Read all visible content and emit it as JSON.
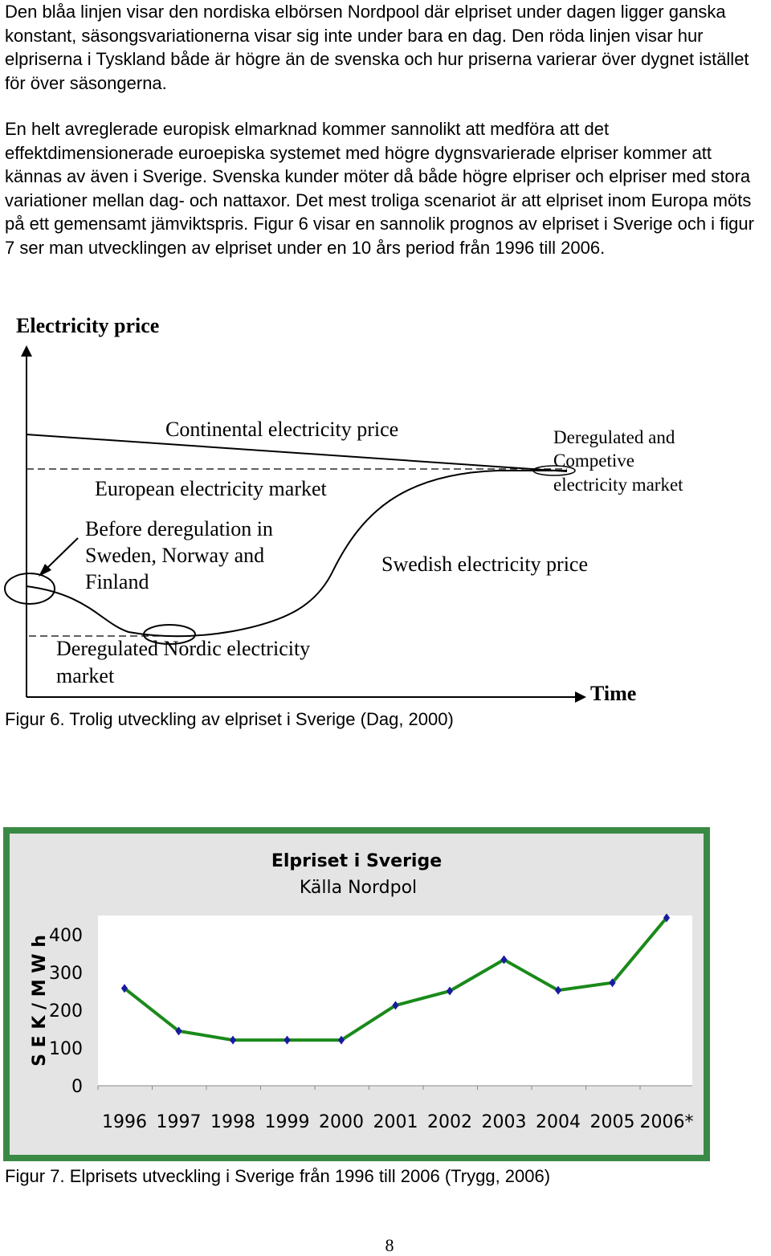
{
  "paragraphs": [
    "Den blåa linjen visar den nordiska elbörsen Nordpool där elpriset under dagen ligger ganska konstant, säsongsvariationerna visar sig inte under bara en dag. Den röda linjen visar hur elpriserna i Tyskland både är högre än de svenska och hur priserna varierar över dygnet istället för över säsongerna.",
    "En helt avreglerade europisk elmarknad kommer sannolikt att medföra att det effektdimensionerade euroepiska systemet med högre dygnsvarierade elpriser kommer att kännas av även i Sverige. Svenska kunder möter då både högre elpriser och elpriser med stora variationer mellan dag- och nattaxor. Det mest troliga scenariot är att elpriset inom Europa möts på ett gemensamt jämviktspris. Figur 6 visar en sannolik prognos av elpriset i Sverige och i figur 7 ser man utvecklingen av elpriset under en 10 års period från 1996 till 2006."
  ],
  "figure6": {
    "y_axis_label": "Electricity price",
    "x_axis_label": "Time",
    "labels": {
      "continental": "Continental electricity price",
      "european": "European electricity market",
      "before_line1": "Before deregulation in",
      "before_line2": "Sweden, Norway and",
      "before_line3": "Finland",
      "deregulated_line1": "Deregulated and",
      "deregulated_line2": "Competive",
      "deregulated_line3": "electricity market",
      "swedish": "Swedish electricity price",
      "nordic_line1": "Deregulated Nordic electricity",
      "nordic_line2": "market"
    },
    "caption": "Figur 6. Trolig utveckling av elpriset i Sverige (Dag, 2000)"
  },
  "chart_data": {
    "type": "line",
    "title": "Elpriset i Sverige",
    "subtitle": "Källa Nordpol",
    "ylabel": "S E K / M W h",
    "xlabel": "",
    "categories": [
      "1996",
      "1997",
      "1998",
      "1999",
      "2000",
      "2001",
      "2002",
      "2003",
      "2004",
      "2005",
      "2006*"
    ],
    "values": [
      258,
      145,
      121,
      121,
      121,
      213,
      251,
      334,
      253,
      273,
      445
    ],
    "yticks": [
      "0",
      "100",
      "200",
      "300",
      "400"
    ],
    "ylim": [
      0,
      450
    ],
    "grid": false,
    "legend": false,
    "colors": {
      "line": "#1a8a1a",
      "marker": "#1a1aa0",
      "frame": "#3a8a46",
      "frame_inner": "#e4e4e4"
    }
  },
  "figure7": {
    "caption": "Figur 7. Elprisets utveckling i Sverige från 1996 till 2006 (Trygg, 2006)"
  },
  "page_number": "8"
}
